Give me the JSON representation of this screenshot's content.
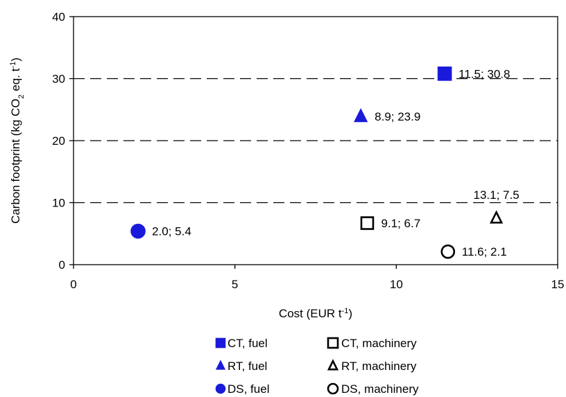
{
  "chart_data": {
    "type": "scatter",
    "xlabel": {
      "main": "Cost (EUR t",
      "sup": "-1",
      "tail": ")"
    },
    "ylabel": {
      "main": "Carbon footprint (kg CO",
      "sub": "2",
      "mid": " eq. t",
      "sup": "-1",
      "tail": ")"
    },
    "xlim": [
      0,
      15
    ],
    "ylim": [
      0,
      40
    ],
    "xticks": [
      0,
      5,
      10,
      15
    ],
    "yticks": [
      0,
      10,
      20,
      30,
      40
    ],
    "gridlines": {
      "axis": "y",
      "style": "dashed",
      "values": [
        10,
        20,
        30
      ]
    },
    "legend_position": "bottom",
    "series": [
      {
        "name": "CT, fuel",
        "marker": "square",
        "fill": "#1a1adb",
        "stroke": "#1a1adb",
        "x": 11.5,
        "y": 30.8,
        "label": "11.5; 30.8",
        "label_pos": "right"
      },
      {
        "name": "RT, fuel",
        "marker": "triangle",
        "fill": "#1a1adb",
        "stroke": "#1a1adb",
        "x": 8.9,
        "y": 23.9,
        "label": "8.9; 23.9",
        "label_pos": "right"
      },
      {
        "name": "DS, fuel",
        "marker": "circle",
        "fill": "#1a1adb",
        "stroke": "#1a1adb",
        "x": 2.0,
        "y": 5.4,
        "label": "2.0; 5.4",
        "label_pos": "right"
      },
      {
        "name": "CT, machinery",
        "marker": "square",
        "fill": "#ffffff",
        "stroke": "#000000",
        "x": 9.1,
        "y": 6.7,
        "label": "9.1; 6.7",
        "label_pos": "right"
      },
      {
        "name": "RT, machinery",
        "marker": "triangle",
        "fill": "#ffffff",
        "stroke": "#000000",
        "x": 13.1,
        "y": 7.5,
        "label": "13.1; 7.5",
        "label_pos": "above"
      },
      {
        "name": "DS, machinery",
        "marker": "circle",
        "fill": "#ffffff",
        "stroke": "#000000",
        "x": 11.6,
        "y": 2.1,
        "label": "11.6; 2.1",
        "label_pos": "right"
      }
    ]
  }
}
